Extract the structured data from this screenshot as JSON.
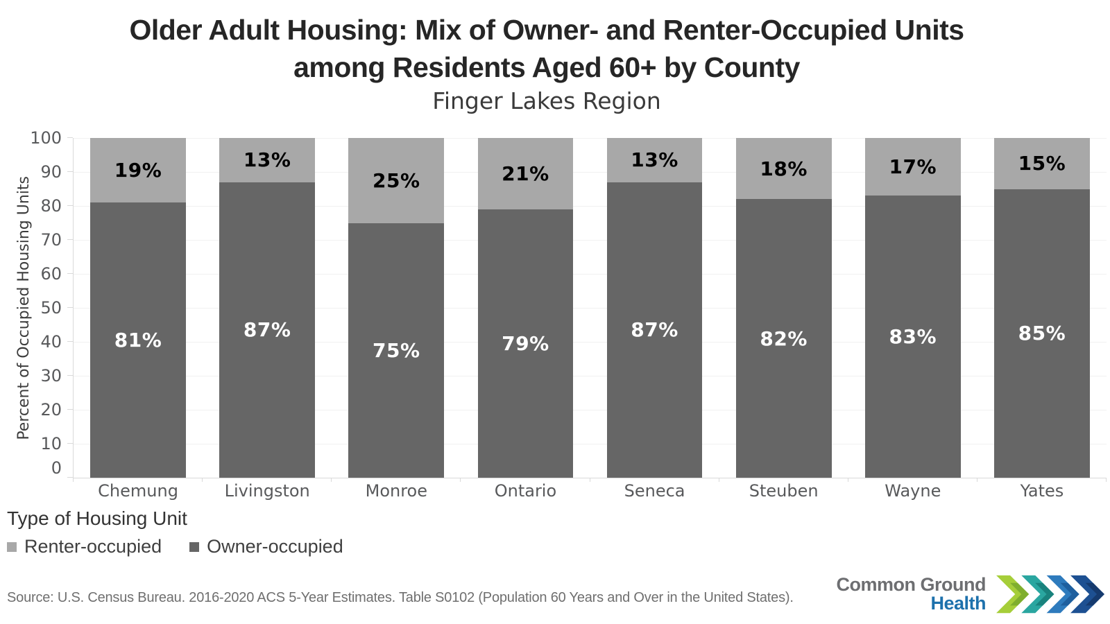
{
  "header": {
    "title_lines": [
      "Older Adult Housing: Mix of Owner- and Renter-Occupied Units",
      "among Residents Aged 60+ by County"
    ],
    "subtitle": "Finger Lakes Region"
  },
  "chart_data": {
    "type": "bar",
    "stacked": true,
    "stacking": "percent",
    "title": "Older Adult Housing: Mix of Owner- and Renter-Occupied Units among Residents Aged 60+ by County",
    "subtitle": "Finger Lakes Region",
    "categories": [
      "Chemung",
      "Livingston",
      "Monroe",
      "Ontario",
      "Seneca",
      "Steuben",
      "Wayne",
      "Yates"
    ],
    "series": [
      {
        "name": "Renter-occupied",
        "position": "top",
        "color": "#a8a8a8",
        "label_color": "#000000",
        "values": [
          19,
          13,
          25,
          21,
          13,
          18,
          17,
          15
        ],
        "labels": [
          "19%",
          "13%",
          "25%",
          "21%",
          "13%",
          "18%",
          "17%",
          "15%"
        ]
      },
      {
        "name": "Owner-occupied",
        "position": "bottom",
        "color": "#666666",
        "label_color": "#ffffff",
        "values": [
          81,
          87,
          75,
          79,
          87,
          82,
          83,
          85
        ],
        "labels": [
          "81%",
          "87%",
          "75%",
          "79%",
          "87%",
          "82%",
          "83%",
          "85%"
        ]
      }
    ],
    "xlabel": "",
    "ylabel": "Percent of Occupied Housing Units",
    "ylim": [
      0,
      100
    ],
    "yticks": [
      0,
      10,
      20,
      30,
      40,
      50,
      60,
      70,
      80,
      90,
      100
    ],
    "grid": true,
    "legend_position": "bottom-left"
  },
  "legend": {
    "title": "Type of Housing Unit",
    "items": [
      {
        "label": "Renter-occupied",
        "color": "#a8a8a8"
      },
      {
        "label": "Owner-occupied",
        "color": "#666666"
      }
    ]
  },
  "footer": {
    "source": "Source: U.S. Census Bureau. 2016-2020 ACS 5-Year Estimates. Table S0102 (Population 60 Years and Over in the United States).",
    "logo": {
      "line1": "Common Ground",
      "line2": "Health",
      "line1_color": "#6d6e71",
      "line2_color": "#1d71ac",
      "chevron_colors": [
        "#a6ce39",
        "#7fae2e",
        "#2aa6a0",
        "#19827d",
        "#2e7bbd",
        "#1e5f9e",
        "#1d5092",
        "#153a6e"
      ]
    }
  }
}
